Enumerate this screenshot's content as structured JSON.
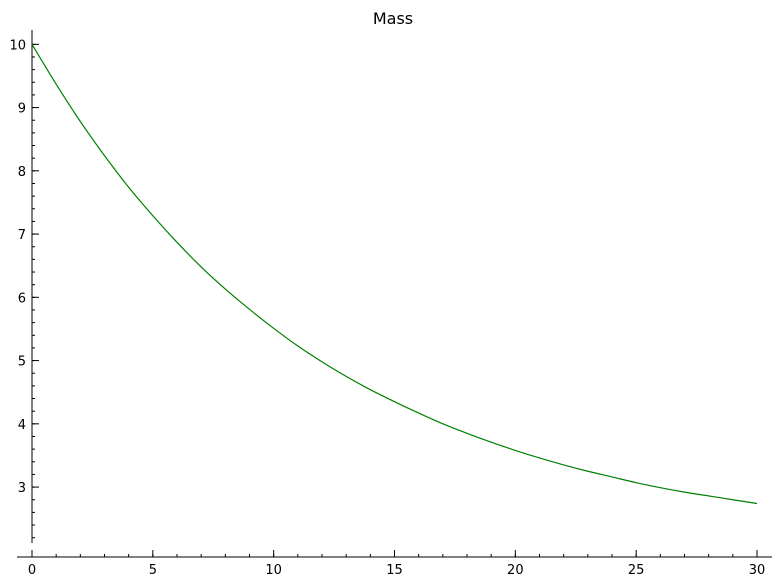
{
  "chart_data": {
    "type": "line",
    "title": "Mass",
    "xlabel": "",
    "ylabel": "",
    "xlim": [
      0,
      30
    ],
    "ylim": [
      2.1,
      10.1
    ],
    "x_axis_crosses_y_at": 2.1,
    "y_axis_crosses_x_at": 0,
    "x_ticks": [
      0,
      5,
      10,
      15,
      20,
      25,
      30
    ],
    "x_tick_labels": [
      "0",
      "5",
      "10",
      "15",
      "20",
      "25",
      "30"
    ],
    "y_ticks": [
      3,
      4,
      5,
      6,
      7,
      8,
      9,
      10
    ],
    "y_tick_labels": [
      "3",
      "4",
      "5",
      "6",
      "7",
      "8",
      "9",
      "10"
    ],
    "x_minor_step": 1,
    "y_minor_step": 0.2,
    "grid": false,
    "legend": "none",
    "series": [
      {
        "color": "#008000",
        "x": [
          0,
          1,
          2,
          3,
          4,
          5,
          6,
          7,
          8,
          9,
          10,
          11,
          12,
          13,
          14,
          15,
          16,
          17,
          18,
          19,
          20,
          21,
          22,
          23,
          24,
          25,
          26,
          27,
          28,
          29,
          30
        ],
        "y": [
          10.0,
          9.37,
          8.78,
          8.24,
          7.74,
          7.29,
          6.87,
          6.48,
          6.13,
          5.81,
          5.51,
          5.23,
          4.98,
          4.75,
          4.54,
          4.35,
          4.17,
          4.0,
          3.85,
          3.71,
          3.58,
          3.46,
          3.35,
          3.25,
          3.16,
          3.07,
          2.99,
          2.92,
          2.86,
          2.8,
          2.74
        ]
      }
    ]
  }
}
